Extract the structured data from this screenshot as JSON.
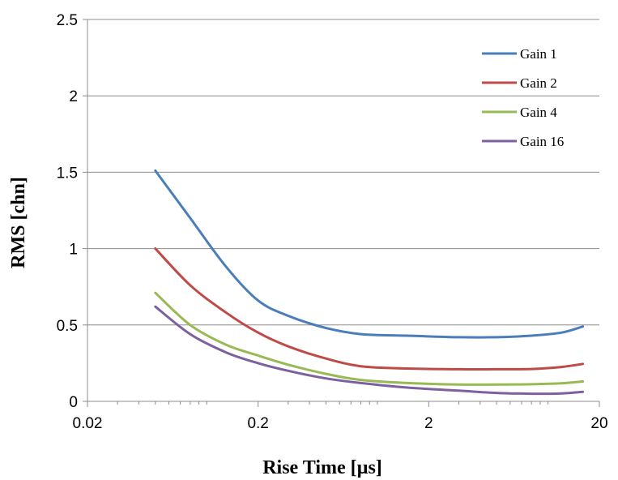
{
  "chart_data": {
    "type": "line",
    "xlabel": "Rise Time [µs]",
    "ylabel": "RMS [chn]",
    "x_scale": "log",
    "xlim": [
      0.02,
      20
    ],
    "ylim": [
      0,
      2.5
    ],
    "x_ticks": [
      "0.02",
      "0.2",
      "2",
      "20"
    ],
    "y_ticks": [
      "0",
      "0.5",
      "1",
      "1.5",
      "2",
      "2.5"
    ],
    "grid": "horizontal",
    "legend_position": "top-right",
    "series": [
      {
        "name": "Gain 1",
        "color": "#4a7ebb",
        "points": [
          [
            0.05,
            1.51
          ],
          [
            0.08,
            1.2
          ],
          [
            0.13,
            0.88
          ],
          [
            0.2,
            0.66
          ],
          [
            0.3,
            0.56
          ],
          [
            0.5,
            0.48
          ],
          [
            0.8,
            0.44
          ],
          [
            1.5,
            0.43
          ],
          [
            3,
            0.42
          ],
          [
            5,
            0.42
          ],
          [
            8,
            0.43
          ],
          [
            12,
            0.45
          ],
          [
            16,
            0.49
          ]
        ]
      },
      {
        "name": "Gain 2",
        "color": "#be4b48",
        "points": [
          [
            0.05,
            1.0
          ],
          [
            0.08,
            0.76
          ],
          [
            0.13,
            0.58
          ],
          [
            0.2,
            0.45
          ],
          [
            0.3,
            0.36
          ],
          [
            0.5,
            0.28
          ],
          [
            0.8,
            0.23
          ],
          [
            1.5,
            0.215
          ],
          [
            3,
            0.21
          ],
          [
            5,
            0.21
          ],
          [
            8,
            0.212
          ],
          [
            12,
            0.225
          ],
          [
            16,
            0.245
          ]
        ]
      },
      {
        "name": "Gain 4",
        "color": "#98b954",
        "points": [
          [
            0.05,
            0.71
          ],
          [
            0.08,
            0.5
          ],
          [
            0.13,
            0.37
          ],
          [
            0.2,
            0.3
          ],
          [
            0.3,
            0.24
          ],
          [
            0.5,
            0.18
          ],
          [
            0.8,
            0.14
          ],
          [
            1.5,
            0.12
          ],
          [
            3,
            0.11
          ],
          [
            5,
            0.11
          ],
          [
            8,
            0.112
          ],
          [
            12,
            0.118
          ],
          [
            16,
            0.13
          ]
        ]
      },
      {
        "name": "Gain 16",
        "color": "#7d60a0",
        "points": [
          [
            0.05,
            0.62
          ],
          [
            0.08,
            0.44
          ],
          [
            0.13,
            0.32
          ],
          [
            0.2,
            0.25
          ],
          [
            0.3,
            0.2
          ],
          [
            0.5,
            0.15
          ],
          [
            0.8,
            0.12
          ],
          [
            1.5,
            0.09
          ],
          [
            3,
            0.07
          ],
          [
            5,
            0.055
          ],
          [
            8,
            0.05
          ],
          [
            12,
            0.052
          ],
          [
            16,
            0.062
          ]
        ]
      }
    ]
  }
}
